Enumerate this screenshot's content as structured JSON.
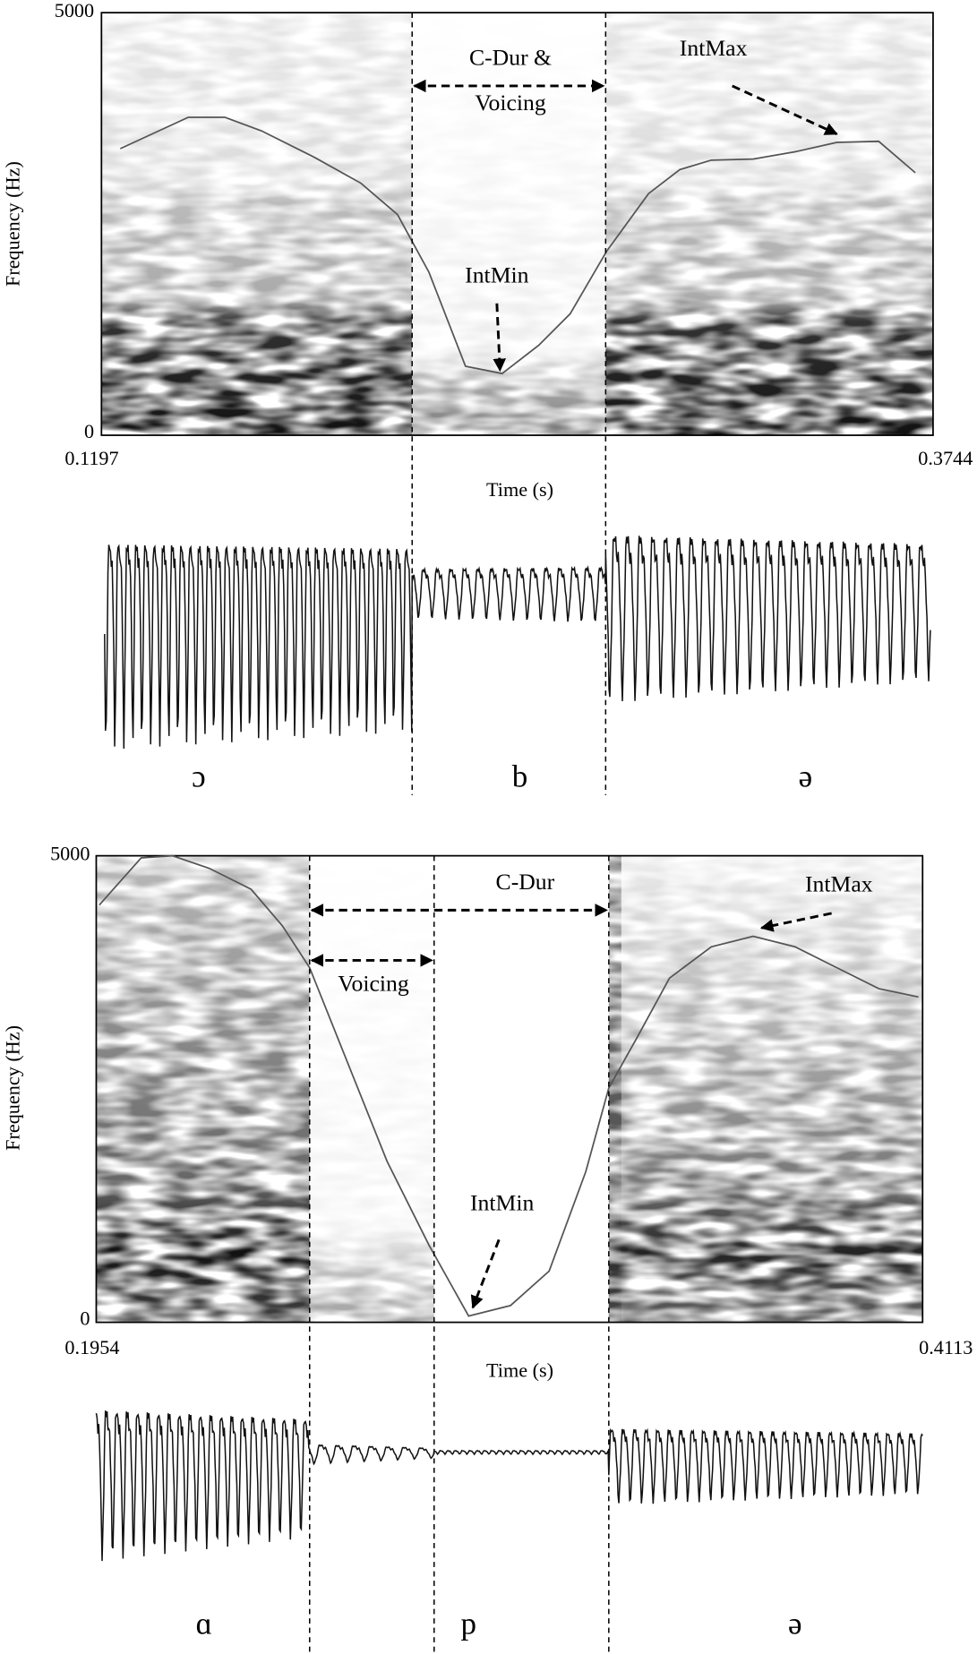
{
  "panels": [
    {
      "y_axis": {
        "label": "Frequency (Hz)",
        "max": 5000,
        "min": 0
      },
      "x_axis": {
        "label": "Time (s)",
        "start": 0.1197,
        "end": 0.3744
      },
      "annotations": {
        "duration": "C-Dur &",
        "voicing": "Voicing",
        "int_max": "IntMax",
        "int_min": "IntMin"
      },
      "segments": [
        "ɔ",
        "b",
        "ə"
      ]
    },
    {
      "y_axis": {
        "label": "Frequency (Hz)",
        "max": 5000,
        "min": 0
      },
      "x_axis": {
        "label": "Time (s)",
        "start": 0.1954,
        "end": 0.4113
      },
      "annotations": {
        "duration": "C-Dur",
        "voicing": "Voicing",
        "int_max": "IntMax",
        "int_min": "IntMin"
      },
      "segments": [
        "ɑ",
        "p",
        "ə"
      ]
    }
  ]
}
